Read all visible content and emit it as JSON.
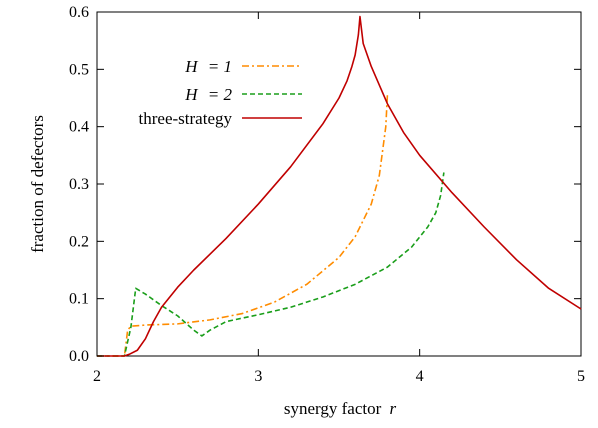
{
  "chart_data": {
    "type": "line",
    "title": "",
    "xlabel": "synergy factor",
    "xlabel_var": "r",
    "ylabel": "fraction of defectors",
    "xlim": [
      2,
      5
    ],
    "ylim": [
      0,
      0.6
    ],
    "xticks": [
      "2",
      "3",
      "4",
      "5"
    ],
    "yticks": [
      "0.0",
      "0.1",
      "0.2",
      "0.3",
      "0.4",
      "0.5",
      "0.6"
    ],
    "grid": false,
    "legend_position": "top-left",
    "series": [
      {
        "name": "H = 1",
        "name_var": "H",
        "name_rest": "= 1",
        "color": "#ff8c00",
        "dash": "7 3 2 3",
        "x": [
          2.0,
          2.17,
          2.19,
          2.21,
          2.3,
          2.5,
          2.7,
          2.9,
          3.1,
          3.3,
          3.5,
          3.6,
          3.7,
          3.75,
          3.79,
          3.8
        ],
        "y": [
          0.0,
          0.0,
          0.045,
          0.052,
          0.054,
          0.056,
          0.063,
          0.074,
          0.094,
          0.125,
          0.172,
          0.208,
          0.265,
          0.315,
          0.4,
          0.455
        ]
      },
      {
        "name": "H = 2",
        "name_var": "H",
        "name_rest": "= 2",
        "color": "#1a9e1a",
        "dash": "5 3",
        "x": [
          2.0,
          2.17,
          2.21,
          2.24,
          2.3,
          2.4,
          2.5,
          2.6,
          2.65,
          2.7,
          2.8,
          3.0,
          3.2,
          3.4,
          3.6,
          3.8,
          3.95,
          4.05,
          4.1,
          4.13,
          4.15
        ],
        "y": [
          0.0,
          0.0,
          0.05,
          0.118,
          0.108,
          0.088,
          0.07,
          0.045,
          0.035,
          0.045,
          0.06,
          0.072,
          0.085,
          0.103,
          0.125,
          0.155,
          0.19,
          0.225,
          0.25,
          0.28,
          0.32
        ]
      },
      {
        "name": "three-strategy",
        "color": "#c00000",
        "dash": "",
        "x": [
          2.0,
          2.17,
          2.2,
          2.25,
          2.3,
          2.35,
          2.4,
          2.5,
          2.6,
          2.8,
          3.0,
          3.2,
          3.4,
          3.5,
          3.55,
          3.58,
          3.6,
          3.62,
          3.63,
          3.65,
          3.7,
          3.8,
          3.9,
          4.0,
          4.2,
          4.4,
          4.6,
          4.8,
          5.0
        ],
        "y": [
          0.0,
          0.0,
          0.003,
          0.01,
          0.03,
          0.06,
          0.085,
          0.12,
          0.15,
          0.205,
          0.265,
          0.33,
          0.405,
          0.45,
          0.48,
          0.505,
          0.525,
          0.56,
          0.592,
          0.545,
          0.505,
          0.44,
          0.39,
          0.35,
          0.285,
          0.225,
          0.168,
          0.118,
          0.082
        ]
      }
    ]
  }
}
